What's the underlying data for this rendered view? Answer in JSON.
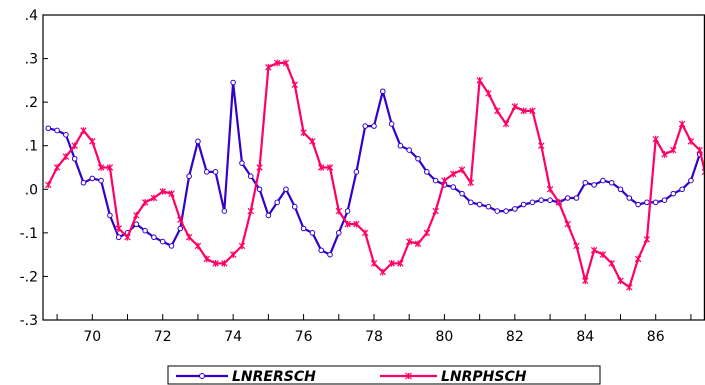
{
  "chart_data": {
    "type": "line",
    "title": "",
    "xlabel": "",
    "ylabel": "",
    "xlim": [
      1968.6,
      1987.4
    ],
    "ylim": [
      -0.3,
      0.4
    ],
    "x_ticks": [
      70,
      72,
      74,
      76,
      78,
      80,
      82,
      84,
      86
    ],
    "x_tick_labels": [
      "70",
      "72",
      "74",
      "76",
      "78",
      "80",
      "82",
      "84",
      "86"
    ],
    "y_ticks": [
      -0.3,
      -0.2,
      -0.1,
      0.0,
      0.1,
      0.2,
      0.3,
      0.4
    ],
    "y_tick_labels": [
      "-.3",
      "-.2",
      "-.1",
      ".0",
      ".1",
      ".2",
      ".3",
      ".4"
    ],
    "grid": false,
    "legend_position": "bottom-center",
    "series": [
      {
        "name": "LNRERSCH",
        "color": "#3300cc",
        "marker": "circle",
        "points": [
          [
            1968.75,
            0.14
          ],
          [
            1969.0,
            0.135
          ],
          [
            1969.25,
            0.125
          ],
          [
            1969.5,
            0.07
          ],
          [
            1969.75,
            0.015
          ],
          [
            1970.0,
            0.025
          ],
          [
            1970.25,
            0.02
          ],
          [
            1970.5,
            -0.06
          ],
          [
            1970.75,
            -0.11
          ],
          [
            1971.0,
            -0.1
          ],
          [
            1971.25,
            -0.08
          ],
          [
            1971.5,
            -0.095
          ],
          [
            1971.75,
            -0.11
          ],
          [
            1972.0,
            -0.12
          ],
          [
            1972.25,
            -0.13
          ],
          [
            1972.5,
            -0.09
          ],
          [
            1972.75,
            0.03
          ],
          [
            1973.0,
            0.11
          ],
          [
            1973.25,
            0.04
          ],
          [
            1973.5,
            0.04
          ],
          [
            1973.75,
            -0.05
          ],
          [
            1974.0,
            0.245
          ],
          [
            1974.25,
            0.06
          ],
          [
            1974.5,
            0.03
          ],
          [
            1974.75,
            0.0
          ],
          [
            1975.0,
            -0.06
          ],
          [
            1975.25,
            -0.03
          ],
          [
            1975.5,
            0.0
          ],
          [
            1975.75,
            -0.04
          ],
          [
            1976.0,
            -0.09
          ],
          [
            1976.25,
            -0.1
          ],
          [
            1976.5,
            -0.14
          ],
          [
            1976.75,
            -0.15
          ],
          [
            1977.0,
            -0.1
          ],
          [
            1977.25,
            -0.05
          ],
          [
            1977.5,
            0.04
          ],
          [
            1977.75,
            0.145
          ],
          [
            1978.0,
            0.145
          ],
          [
            1978.25,
            0.225
          ],
          [
            1978.5,
            0.15
          ],
          [
            1978.75,
            0.1
          ],
          [
            1979.0,
            0.09
          ],
          [
            1979.25,
            0.07
          ],
          [
            1979.5,
            0.04
          ],
          [
            1979.75,
            0.02
          ],
          [
            1980.0,
            0.01
          ],
          [
            1980.25,
            0.005
          ],
          [
            1980.5,
            -0.01
          ],
          [
            1980.75,
            -0.03
          ],
          [
            1981.0,
            -0.035
          ],
          [
            1981.25,
            -0.04
          ],
          [
            1981.5,
            -0.05
          ],
          [
            1981.75,
            -0.05
          ],
          [
            1982.0,
            -0.045
          ],
          [
            1982.25,
            -0.035
          ],
          [
            1982.5,
            -0.03
          ],
          [
            1982.75,
            -0.025
          ],
          [
            1983.0,
            -0.025
          ],
          [
            1983.25,
            -0.03
          ],
          [
            1983.5,
            -0.02
          ],
          [
            1983.75,
            -0.02
          ],
          [
            1984.0,
            0.015
          ],
          [
            1984.25,
            0.01
          ],
          [
            1984.5,
            0.02
          ],
          [
            1984.75,
            0.015
          ],
          [
            1985.0,
            0.0
          ],
          [
            1985.25,
            -0.02
          ],
          [
            1985.5,
            -0.035
          ],
          [
            1985.75,
            -0.03
          ],
          [
            1986.0,
            -0.03
          ],
          [
            1986.25,
            -0.025
          ],
          [
            1986.5,
            -0.01
          ],
          [
            1986.75,
            0.0
          ],
          [
            1987.0,
            0.02
          ],
          [
            1987.25,
            0.08
          ]
        ]
      },
      {
        "name": "LNRPHSCH",
        "color": "#ff0066",
        "marker": "star",
        "points": [
          [
            1968.75,
            0.01
          ],
          [
            1969.0,
            0.05
          ],
          [
            1969.25,
            0.075
          ],
          [
            1969.5,
            0.1
          ],
          [
            1969.75,
            0.135
          ],
          [
            1970.0,
            0.11
          ],
          [
            1970.25,
            0.05
          ],
          [
            1970.5,
            0.05
          ],
          [
            1970.75,
            -0.09
          ],
          [
            1971.0,
            -0.11
          ],
          [
            1971.25,
            -0.06
          ],
          [
            1971.5,
            -0.03
          ],
          [
            1971.75,
            -0.02
          ],
          [
            1972.0,
            -0.005
          ],
          [
            1972.25,
            -0.01
          ],
          [
            1972.5,
            -0.07
          ],
          [
            1972.75,
            -0.11
          ],
          [
            1973.0,
            -0.13
          ],
          [
            1973.25,
            -0.16
          ],
          [
            1973.5,
            -0.17
          ],
          [
            1973.75,
            -0.17
          ],
          [
            1974.0,
            -0.15
          ],
          [
            1974.25,
            -0.13
          ],
          [
            1974.5,
            -0.05
          ],
          [
            1974.75,
            0.05
          ],
          [
            1975.0,
            0.28
          ],
          [
            1975.25,
            0.29
          ],
          [
            1975.5,
            0.29
          ],
          [
            1975.75,
            0.24
          ],
          [
            1976.0,
            0.13
          ],
          [
            1976.25,
            0.11
          ],
          [
            1976.5,
            0.05
          ],
          [
            1976.75,
            0.05
          ],
          [
            1977.0,
            -0.05
          ],
          [
            1977.25,
            -0.08
          ],
          [
            1977.5,
            -0.08
          ],
          [
            1977.75,
            -0.1
          ],
          [
            1978.0,
            -0.17
          ],
          [
            1978.25,
            -0.19
          ],
          [
            1978.5,
            -0.17
          ],
          [
            1978.75,
            -0.17
          ],
          [
            1979.0,
            -0.12
          ],
          [
            1979.25,
            -0.125
          ],
          [
            1979.5,
            -0.1
          ],
          [
            1979.75,
            -0.05
          ],
          [
            1980.0,
            0.02
          ],
          [
            1980.25,
            0.035
          ],
          [
            1980.5,
            0.045
          ],
          [
            1980.75,
            0.015
          ],
          [
            1981.0,
            0.25
          ],
          [
            1981.25,
            0.22
          ],
          [
            1981.5,
            0.18
          ],
          [
            1981.75,
            0.15
          ],
          [
            1982.0,
            0.19
          ],
          [
            1982.25,
            0.18
          ],
          [
            1982.5,
            0.18
          ],
          [
            1982.75,
            0.1
          ],
          [
            1983.0,
            0.0
          ],
          [
            1983.25,
            -0.03
          ],
          [
            1983.5,
            -0.08
          ],
          [
            1983.75,
            -0.13
          ],
          [
            1984.0,
            -0.21
          ],
          [
            1984.25,
            -0.14
          ],
          [
            1984.5,
            -0.15
          ],
          [
            1984.75,
            -0.17
          ],
          [
            1985.0,
            -0.21
          ],
          [
            1985.25,
            -0.225
          ],
          [
            1985.5,
            -0.16
          ],
          [
            1985.75,
            -0.115
          ],
          [
            1986.0,
            0.115
          ],
          [
            1986.25,
            0.08
          ],
          [
            1986.5,
            0.09
          ],
          [
            1986.75,
            0.15
          ],
          [
            1987.0,
            0.11
          ],
          [
            1987.25,
            0.09
          ],
          [
            1987.4,
            0.04
          ]
        ]
      }
    ]
  }
}
